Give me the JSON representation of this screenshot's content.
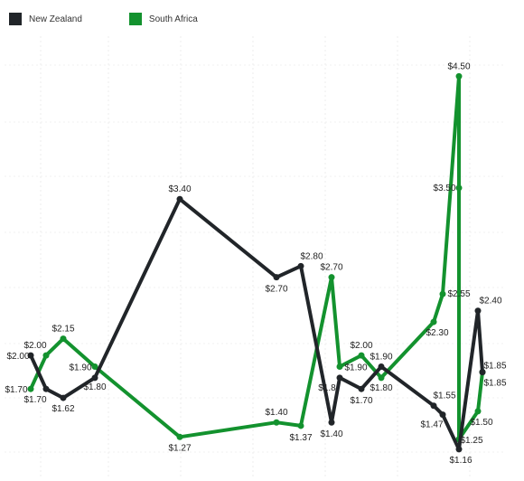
{
  "legend": {
    "items": [
      {
        "label": "New Zealand",
        "color": "#212529"
      },
      {
        "label": "South Africa",
        "color": "#13922e"
      }
    ]
  },
  "chart_data": {
    "type": "line",
    "title": "",
    "xlabel": "",
    "ylabel": "",
    "grid": true,
    "legend_position": "top-left",
    "ylim": [
      0.9,
      4.6
    ],
    "series": [
      {
        "name": "New Zealand",
        "color": "#212529",
        "points": [
          {
            "x": 34,
            "y": 2.0,
            "label": "$2.00"
          },
          {
            "x": 51,
            "y": 1.7,
            "label": "$1.70"
          },
          {
            "x": 70,
            "y": 1.62,
            "label": "$1.62"
          },
          {
            "x": 105,
            "y": 1.8,
            "label": "$1.80"
          },
          {
            "x": 199,
            "y": 3.4,
            "label": "$3.40"
          },
          {
            "x": 306,
            "y": 2.7,
            "label": "$2.70"
          },
          {
            "x": 333,
            "y": 2.8,
            "label": "$2.80"
          },
          {
            "x": 367,
            "y": 1.4,
            "label": "$1.40"
          },
          {
            "x": 376,
            "y": 1.8,
            "label": "$1.8"
          },
          {
            "x": 400,
            "y": 1.7,
            "label": "$1.70"
          },
          {
            "x": 422,
            "y": 1.9,
            "label": "$1.90"
          },
          {
            "x": 480,
            "y": 1.55,
            "label": "$1.55"
          },
          {
            "x": 490,
            "y": 1.47,
            "label": "$1.47"
          },
          {
            "x": 508,
            "y": 1.16,
            "label": "$1.16"
          },
          {
            "x": 529,
            "y": 2.4,
            "label": "$2.40"
          },
          {
            "x": 534,
            "y": 1.85,
            "label": "$1.85"
          }
        ]
      },
      {
        "name": "South Africa",
        "color": "#13922e",
        "points": [
          {
            "x": 34,
            "y": 1.7,
            "label": "$1.70"
          },
          {
            "x": 51,
            "y": 2.0,
            "label": "$2.00"
          },
          {
            "x": 70,
            "y": 2.15,
            "label": "$2.15"
          },
          {
            "x": 105,
            "y": 1.9,
            "label": "$1.90"
          },
          {
            "x": 199,
            "y": 1.27,
            "label": "$1.27"
          },
          {
            "x": 306,
            "y": 1.4,
            "label": "$1.40"
          },
          {
            "x": 333,
            "y": 1.37,
            "label": "$1.37"
          },
          {
            "x": 367,
            "y": 2.7,
            "label": "$2.70"
          },
          {
            "x": 376,
            "y": 1.9,
            "label": "$1.90"
          },
          {
            "x": 400,
            "y": 2.0,
            "label": "$2.00"
          },
          {
            "x": 422,
            "y": 1.8,
            "label": "$1.80"
          },
          {
            "x": 480,
            "y": 2.3,
            "label": "$2.30"
          },
          {
            "x": 490,
            "y": 2.55,
            "label": "$2.55"
          },
          {
            "x": 508,
            "y": 4.5,
            "label": "$4.50"
          },
          {
            "x": 508,
            "y": 3.5,
            "label": "$3.50"
          },
          {
            "x": 508,
            "y": 1.25,
            "label": "$1.25"
          },
          {
            "x": 529,
            "y": 1.5,
            "label": "$1.50"
          },
          {
            "x": 534,
            "y": 1.85,
            "label": "$1.85"
          }
        ]
      }
    ]
  }
}
